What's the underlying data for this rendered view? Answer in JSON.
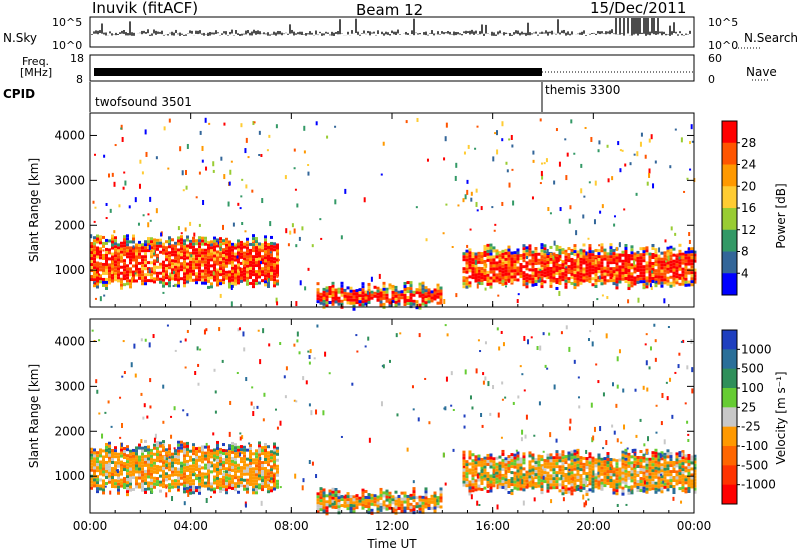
{
  "header": {
    "station": "Inuvik (fitACF)",
    "beam": "Beam 12",
    "date": "15/Dec/2011"
  },
  "strip_labels": {
    "nsky": "N.Sky",
    "nsearch": "N.Search",
    "freq_line1": "Freq.",
    "freq_line2": "[MHz]",
    "nave": "Nave",
    "cpid": "CPID"
  },
  "noise_ticks": {
    "left": [
      "10^5",
      "10^0"
    ],
    "right": [
      "10^5",
      "10^0"
    ]
  },
  "freq_ticks": {
    "left": [
      "18",
      "8"
    ],
    "right": [
      "60",
      "0"
    ]
  },
  "cpid_segments": [
    {
      "label": "twofsound 3501",
      "start_hour": 0
    },
    {
      "label": "themis 3300",
      "start_hour": 18
    }
  ],
  "colorbars": {
    "power": {
      "label": "Power [dB]",
      "ticks": [
        "28",
        "24",
        "20",
        "16",
        "12",
        "8",
        "4"
      ],
      "colors": [
        "#ff0000",
        "#ff5500",
        "#ff9900",
        "#ffcc33",
        "#99cc33",
        "#339966",
        "#336699",
        "#0000ff"
      ]
    },
    "velocity": {
      "label": "Velocity  [m s⁻¹]",
      "ticks": [
        "1000",
        "500",
        "100",
        "25",
        "-25",
        "-100",
        "-500",
        "-1000"
      ],
      "colors": [
        "#1f3fbf",
        "#2a6f99",
        "#2f8f5a",
        "#66cc33",
        "#c8c8c8",
        "#ff9900",
        "#ff6600",
        "#ff3300",
        "#ff0000"
      ]
    }
  },
  "chart_data": [
    {
      "type": "heatmap",
      "title": "Power",
      "ylabel": "Slant Range [km]",
      "xlabel": "Time UT",
      "x_ticks": [
        "00:00",
        "04:00",
        "08:00",
        "12:00",
        "16:00",
        "20:00",
        "00:00"
      ],
      "y_ticks": [
        "1000",
        "2000",
        "3000",
        "4000"
      ],
      "xlim_hours": [
        0,
        24
      ],
      "ylim_km": [
        180,
        4500
      ],
      "colorbar_label": "Power [dB]",
      "dominant_band": [
        {
          "from_h": 0,
          "to_h": 7.5,
          "range_km": [
            700,
            1700
          ],
          "value_db": 26
        },
        {
          "from_h": 9,
          "to_h": 14,
          "range_km": [
            250,
            650
          ],
          "value_db": 24
        },
        {
          "from_h": 14.8,
          "to_h": 24,
          "range_km": [
            700,
            1500
          ],
          "value_db": 27
        }
      ]
    },
    {
      "type": "heatmap",
      "title": "Velocity",
      "ylabel": "Slant Range [km]",
      "xlabel": "Time UT",
      "x_ticks": [
        "00:00",
        "04:00",
        "08:00",
        "12:00",
        "16:00",
        "20:00",
        "00:00"
      ],
      "y_ticks": [
        "1000",
        "2000",
        "3000",
        "4000"
      ],
      "xlim_hours": [
        0,
        24
      ],
      "ylim_km": [
        180,
        4500
      ],
      "colorbar_label": "Velocity [m s-1]",
      "dominant_band": [
        {
          "from_h": 0,
          "to_h": 7.5,
          "range_km": [
            700,
            1700
          ],
          "value_ms": -100
        },
        {
          "from_h": 9,
          "to_h": 14,
          "range_km": [
            250,
            650
          ],
          "value_ms": -100
        },
        {
          "from_h": 14.8,
          "to_h": 24,
          "range_km": [
            700,
            1500
          ],
          "value_ms": -100
        }
      ]
    }
  ],
  "x_axis_label": "Time UT"
}
